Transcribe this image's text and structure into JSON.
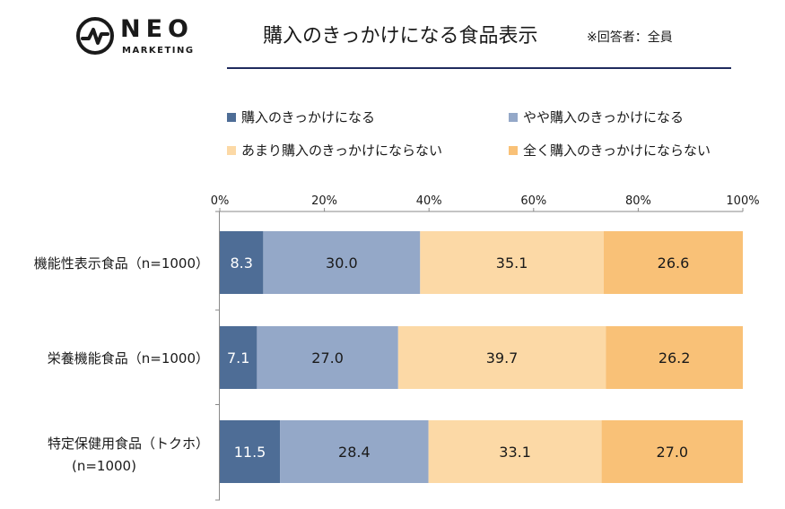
{
  "logo": {
    "name": "NEO",
    "sub": "MARKETING"
  },
  "header": {
    "title": "購入のきっかけになる食品表示",
    "note": "※回答者：全員"
  },
  "colors": [
    "#4e6d96",
    "#94a8c8",
    "#fcd9a6",
    "#f9c177"
  ],
  "chart_data": {
    "type": "bar",
    "orientation": "horizontal",
    "stacked": true,
    "percent": true,
    "categories": [
      {
        "line1": "機能性表示食品（n=1000）",
        "line2": ""
      },
      {
        "line1": "栄養機能食品（n=1000）",
        "line2": ""
      },
      {
        "line1": "特定保健用食品（トクホ）",
        "line2": "(n=1000)"
      }
    ],
    "series": [
      {
        "name": "購入のきっかけになる",
        "values": [
          8.3,
          7.1,
          11.5
        ]
      },
      {
        "name": "やや購入のきっかけになる",
        "values": [
          30.0,
          27.0,
          28.4
        ]
      },
      {
        "name": "あまり購入のきっかけにならない",
        "values": [
          35.1,
          39.7,
          33.1
        ]
      },
      {
        "name": "全く購入のきっかけにならない",
        "values": [
          26.6,
          26.2,
          27.0
        ]
      }
    ],
    "xticks": [
      "0%",
      "20%",
      "40%",
      "60%",
      "80%",
      "100%"
    ],
    "xlim": [
      0,
      100
    ],
    "legend": "top"
  }
}
